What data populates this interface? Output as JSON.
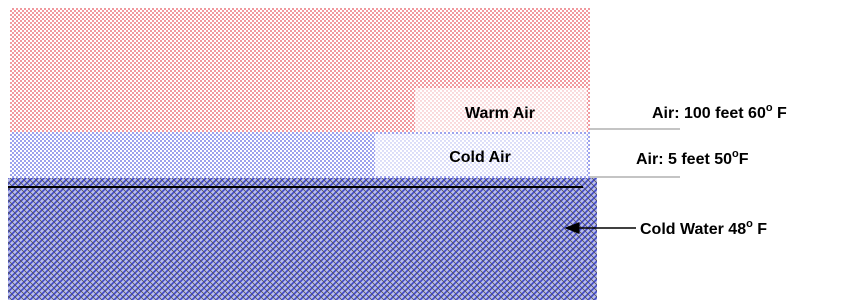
{
  "layers": {
    "warm_air": "Warm Air",
    "cold_air": "Cold Air"
  },
  "labels": [
    {
      "main": "Air: 100 feet 60",
      "sup": "o",
      "unit": " F"
    },
    {
      "main": "Air: 5 feet 50",
      "sup": "o",
      "unit": "F"
    },
    {
      "main": "Cold Water 48",
      "sup": "o",
      "unit": " F"
    }
  ]
}
